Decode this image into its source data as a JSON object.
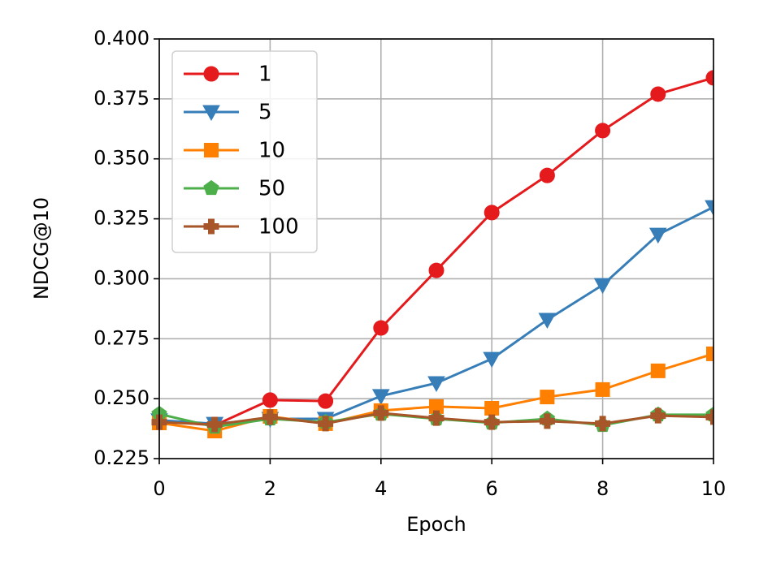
{
  "chart_data": {
    "type": "line",
    "xlabel": "Epoch",
    "ylabel": "NDCG@10",
    "x": [
      0,
      1,
      2,
      3,
      4,
      5,
      6,
      7,
      8,
      9,
      10
    ],
    "xlim": [
      0,
      10
    ],
    "xticks": [
      0,
      2,
      4,
      6,
      8,
      10
    ],
    "ylim": [
      0.225,
      0.4
    ],
    "yticks": [
      0.225,
      {
        "value": 0.25,
        "label": "0.250"
      },
      0.275,
      {
        "value": 0.3,
        "label": "0.300"
      },
      0.325,
      {
        "value": 0.35,
        "label": "0.350"
      },
      0.375,
      {
        "value": 0.4,
        "label": "0.400"
      }
    ],
    "grid": true,
    "legend": "upper left",
    "series": [
      {
        "name": "1",
        "color": "#e41a1c",
        "marker": "circle",
        "values": [
          0.2406,
          0.2389,
          0.2494,
          0.249,
          0.2795,
          0.3035,
          0.3276,
          0.3431,
          0.3618,
          0.377,
          0.3838
        ]
      },
      {
        "name": "5",
        "color": "#377eb8",
        "marker": "triangle-down",
        "values": [
          0.241,
          0.2395,
          0.2416,
          0.2416,
          0.2511,
          0.2565,
          0.2666,
          0.2829,
          0.2974,
          0.3184,
          0.3299
        ]
      },
      {
        "name": "10",
        "color": "#ff7f00",
        "marker": "square",
        "values": [
          0.2399,
          0.2365,
          0.2426,
          0.2396,
          0.245,
          0.2467,
          0.246,
          0.2507,
          0.2538,
          0.2616,
          0.2687
        ]
      },
      {
        "name": "50",
        "color": "#4daf4a",
        "marker": "pentagon",
        "values": [
          0.2436,
          0.2382,
          0.2416,
          0.2402,
          0.2436,
          0.2416,
          0.2399,
          0.2416,
          0.2389,
          0.2433,
          0.2433
        ]
      },
      {
        "name": "100",
        "color": "#a65628",
        "marker": "plus",
        "values": [
          0.2402,
          0.2392,
          0.2423,
          0.2396,
          0.244,
          0.2419,
          0.2402,
          0.2406,
          0.2396,
          0.2429,
          0.2423
        ]
      }
    ]
  }
}
